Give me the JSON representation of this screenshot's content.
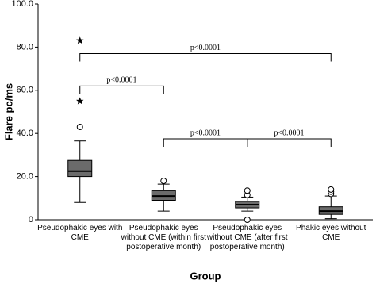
{
  "chart_data": {
    "type": "box",
    "y_label": "Flare pc/ms",
    "x_label": "Group",
    "categories": [
      "Pseudophakic eyes with CME",
      "Pseudophakic eyes without CME (within first postoperative month)",
      "Pseudophakic eyes without CME (after first postoperative month)",
      "Phakic eyes without CME"
    ],
    "color": "#6b6b6b",
    "boxes": [
      {
        "whislo": 8,
        "q1": 20,
        "med": 22.5,
        "q3": 27.5,
        "whishi": 36.5,
        "outliers": [
          43
        ],
        "extremes": [
          55,
          83
        ]
      },
      {
        "whislo": 4,
        "q1": 9,
        "med": 11,
        "q3": 13.5,
        "whishi": 16.5,
        "outliers": [
          18
        ],
        "extremes": []
      },
      {
        "whislo": 4,
        "q1": 5.5,
        "med": 7,
        "q3": 8.5,
        "whishi": 10.5,
        "outliers": [
          0,
          11.5,
          13.5
        ],
        "extremes": []
      },
      {
        "whislo": 0.5,
        "q1": 2.5,
        "med": 4,
        "q3": 6,
        "whishi": 11,
        "outliers": [
          12,
          13,
          14
        ],
        "extremes": []
      }
    ],
    "annotations": [
      {
        "from": 0,
        "to": 3,
        "y": 77,
        "text": "p<0.0001"
      },
      {
        "from": 0,
        "to": 1,
        "y": 62,
        "text": "p<0.0001"
      },
      {
        "from": 1,
        "to": 2,
        "y": 37.5,
        "text": "p<0.0001"
      },
      {
        "from": 2,
        "to": 3,
        "y": 37.5,
        "text": "p<0.0001"
      }
    ],
    "ylim": [
      0,
      100
    ],
    "yticks": [
      0,
      {
        "value": 20,
        "label": "20.0"
      },
      {
        "value": 40,
        "label": "40.0"
      },
      {
        "value": 60,
        "label": "60.0"
      },
      {
        "value": 80,
        "label": "80.0"
      },
      {
        "value": 100,
        "label": "100.0"
      }
    ]
  }
}
